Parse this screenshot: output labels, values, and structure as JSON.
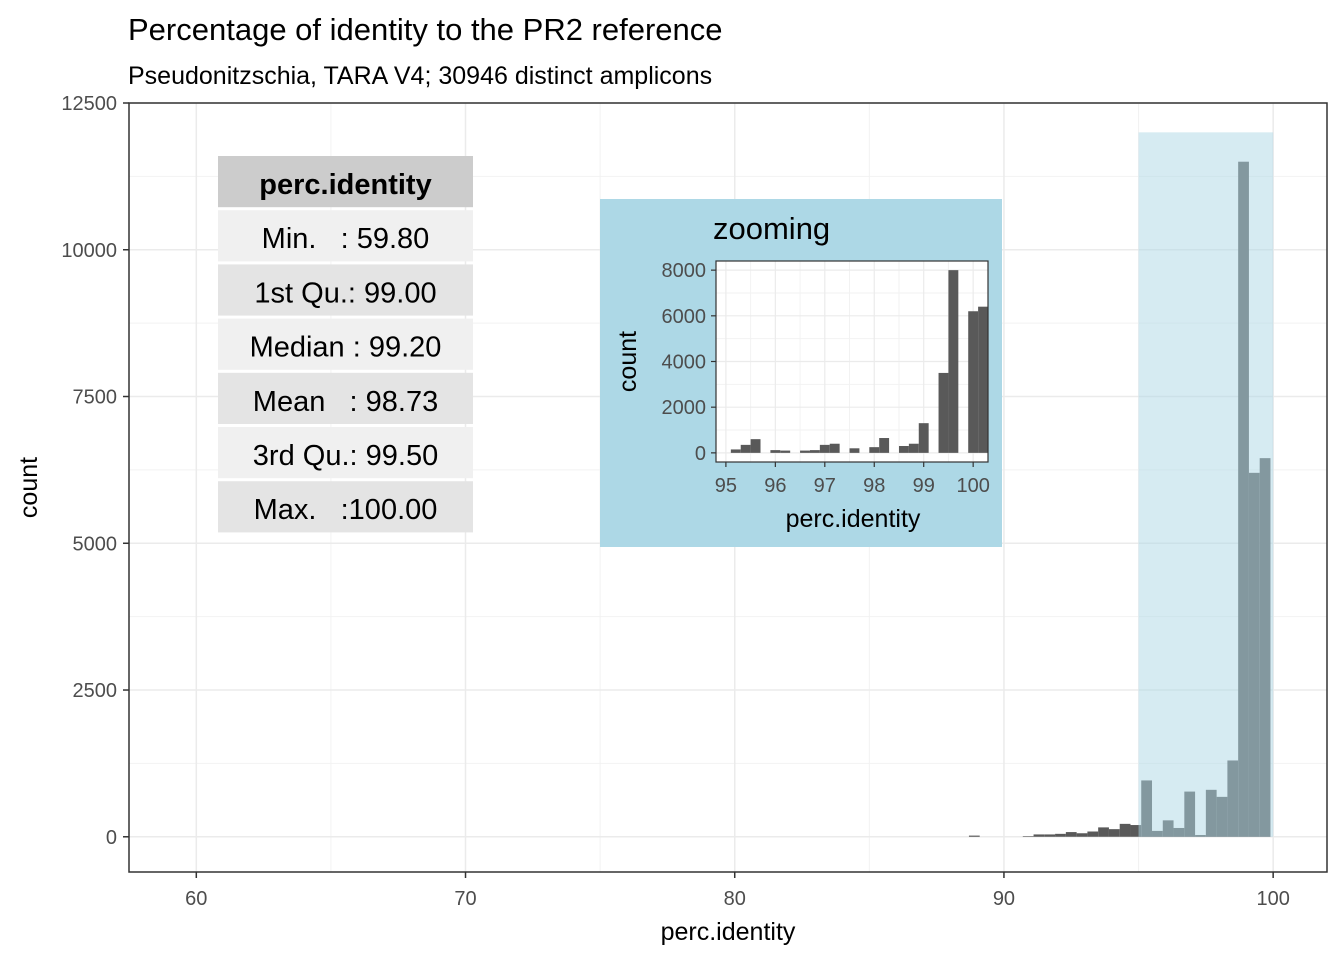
{
  "chart_data": [
    {
      "type": "bar",
      "title": "Percentage of identity to the PR2 reference",
      "subtitle": "Pseudonitzschia, TARA V4; 30946 distinct amplicons",
      "xlabel": "perc.identity",
      "ylabel": "count",
      "xlim": [
        57.5,
        102
      ],
      "ylim": [
        -600,
        12500
      ],
      "xticks": [
        60,
        70,
        80,
        90,
        100
      ],
      "yticks": [
        0,
        2500,
        5000,
        7500,
        10000,
        12500
      ],
      "grid": true,
      "bin_width": 0.4,
      "bins": [
        {
          "x": 88.9,
          "count": 20
        },
        {
          "x": 90.9,
          "count": 10
        },
        {
          "x": 91.3,
          "count": 40
        },
        {
          "x": 91.7,
          "count": 40
        },
        {
          "x": 92.1,
          "count": 50
        },
        {
          "x": 92.5,
          "count": 80
        },
        {
          "x": 92.9,
          "count": 60
        },
        {
          "x": 93.3,
          "count": 90
        },
        {
          "x": 93.7,
          "count": 160
        },
        {
          "x": 94.1,
          "count": 130
        },
        {
          "x": 94.5,
          "count": 220
        },
        {
          "x": 94.9,
          "count": 200
        },
        {
          "x": 95.3,
          "count": 960
        },
        {
          "x": 95.7,
          "count": 100
        },
        {
          "x": 96.1,
          "count": 280
        },
        {
          "x": 96.5,
          "count": 150
        },
        {
          "x": 96.9,
          "count": 770
        },
        {
          "x": 97.3,
          "count": 30
        },
        {
          "x": 97.7,
          "count": 800
        },
        {
          "x": 98.1,
          "count": 680
        },
        {
          "x": 98.5,
          "count": 1300
        },
        {
          "x": 98.9,
          "count": 11500
        },
        {
          "x": 99.3,
          "count": 6200
        },
        {
          "x": 99.7,
          "count": 6450
        }
      ],
      "highlight_range": [
        95,
        100
      ],
      "highlight_color": "#add8e6",
      "bar_color": "#595959"
    },
    {
      "type": "bar",
      "title": "zooming",
      "xlabel": "perc.identity",
      "ylabel": "count",
      "xlim": [
        94.8,
        100.3
      ],
      "ylim": [
        -400,
        8400
      ],
      "xticks": [
        95,
        96,
        97,
        98,
        99,
        100
      ],
      "yticks": [
        0,
        2000,
        4000,
        6000,
        8000
      ],
      "grid": true,
      "background_color": "#add8e6",
      "bar_color": "#595959",
      "bin_width": 0.2,
      "bins": [
        {
          "x": 95.2,
          "count": 150
        },
        {
          "x": 95.4,
          "count": 350
        },
        {
          "x": 95.6,
          "count": 600
        },
        {
          "x": 96.0,
          "count": 120
        },
        {
          "x": 96.2,
          "count": 100
        },
        {
          "x": 96.6,
          "count": 100
        },
        {
          "x": 96.8,
          "count": 120
        },
        {
          "x": 97.0,
          "count": 350
        },
        {
          "x": 97.2,
          "count": 400
        },
        {
          "x": 97.6,
          "count": 200
        },
        {
          "x": 98.0,
          "count": 250
        },
        {
          "x": 98.2,
          "count": 650
        },
        {
          "x": 98.6,
          "count": 300
        },
        {
          "x": 98.8,
          "count": 400
        },
        {
          "x": 99.0,
          "count": 1300
        },
        {
          "x": 99.4,
          "count": 3500
        },
        {
          "x": 99.6,
          "count": 8000
        },
        {
          "x": 100.0,
          "count": 6200
        },
        {
          "x": 100.2,
          "count": 6400
        }
      ]
    }
  ],
  "summary_table": {
    "header": "perc.identity",
    "rows": [
      "Min.   : 59.80",
      "1st Qu.: 99.00",
      "Median : 99.20",
      "Mean   : 98.73",
      "3rd Qu.: 99.50",
      "Max.   :100.00"
    ]
  }
}
